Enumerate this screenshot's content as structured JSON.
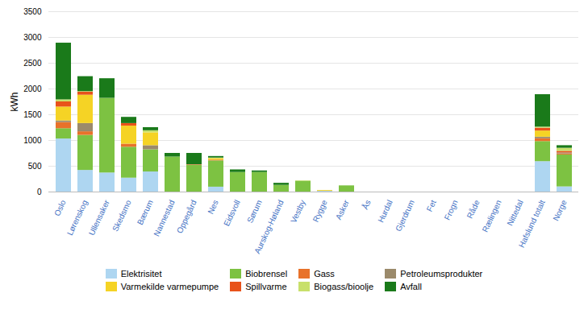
{
  "chart_data": {
    "type": "bar",
    "stacked": true,
    "categories": [
      "Oslo",
      "Lørenskog",
      "Ullensaker",
      "Skedsmo",
      "Bærum",
      "Nannestad",
      "Oppegård",
      "Nes",
      "Eidsvoll",
      "Sørum",
      "Aurskog-Høland",
      "Vestby",
      "Rygge",
      "Asker",
      "Ås",
      "Hurdal",
      "Gjerdrum",
      "Fet",
      "Frogn",
      "Råde",
      "Rælingen",
      "Nittedal",
      "Hafslund totalt",
      "Norge"
    ],
    "series": [
      {
        "name": "Elektrisitet",
        "color": "#aed6f1",
        "values": [
          1030,
          420,
          370,
          270,
          390,
          0,
          0,
          95,
          0,
          0,
          0,
          0,
          15,
          0,
          0,
          0,
          0,
          0,
          0,
          0,
          0,
          0,
          590,
          100
        ]
      },
      {
        "name": "Biobrensel",
        "color": "#7dc242",
        "values": [
          200,
          680,
          1450,
          600,
          430,
          680,
          520,
          510,
          380,
          380,
          130,
          210,
          0,
          120,
          0,
          0,
          0,
          0,
          0,
          0,
          0,
          0,
          390,
          620
        ]
      },
      {
        "name": "Gass",
        "color": "#e8722a",
        "values": [
          120,
          70,
          0,
          60,
          0,
          0,
          10,
          15,
          0,
          0,
          0,
          0,
          0,
          0,
          0,
          0,
          0,
          0,
          0,
          0,
          0,
          0,
          55,
          20
        ]
      },
      {
        "name": "Petroleumsprodukter",
        "color": "#9b8a6b",
        "values": [
          30,
          160,
          0,
          0,
          80,
          0,
          0,
          0,
          0,
          0,
          0,
          0,
          0,
          0,
          0,
          0,
          0,
          0,
          0,
          0,
          0,
          0,
          30,
          20
        ]
      },
      {
        "name": "Varmekilde varmepumpe",
        "color": "#f5d325",
        "values": [
          270,
          550,
          0,
          350,
          250,
          0,
          0,
          30,
          0,
          0,
          0,
          0,
          15,
          0,
          0,
          0,
          0,
          0,
          0,
          0,
          0,
          0,
          120,
          0
        ]
      },
      {
        "name": "Spillvarme",
        "color": "#e8521a",
        "values": [
          100,
          60,
          0,
          50,
          0,
          0,
          0,
          0,
          0,
          0,
          0,
          0,
          0,
          0,
          0,
          0,
          0,
          0,
          0,
          0,
          0,
          0,
          55,
          30
        ]
      },
      {
        "name": "Biogass/bioolje",
        "color": "#c8e06b",
        "values": [
          40,
          10,
          0,
          0,
          40,
          0,
          0,
          10,
          0,
          0,
          0,
          10,
          0,
          0,
          0,
          0,
          0,
          0,
          0,
          0,
          0,
          0,
          20,
          60
        ]
      },
      {
        "name": "Avfall",
        "color": "#1a7a1a",
        "values": [
          1100,
          290,
          380,
          120,
          60,
          70,
          220,
          30,
          50,
          30,
          40,
          0,
          0,
          0,
          0,
          0,
          0,
          0,
          0,
          0,
          0,
          0,
          630,
          50
        ]
      }
    ],
    "ylabel": "kWh",
    "ylim": [
      0,
      3500
    ],
    "yticks": [
      0,
      500,
      1000,
      1500,
      2000,
      2500,
      3000,
      3500
    ],
    "grid": true,
    "legend": "bottom"
  }
}
